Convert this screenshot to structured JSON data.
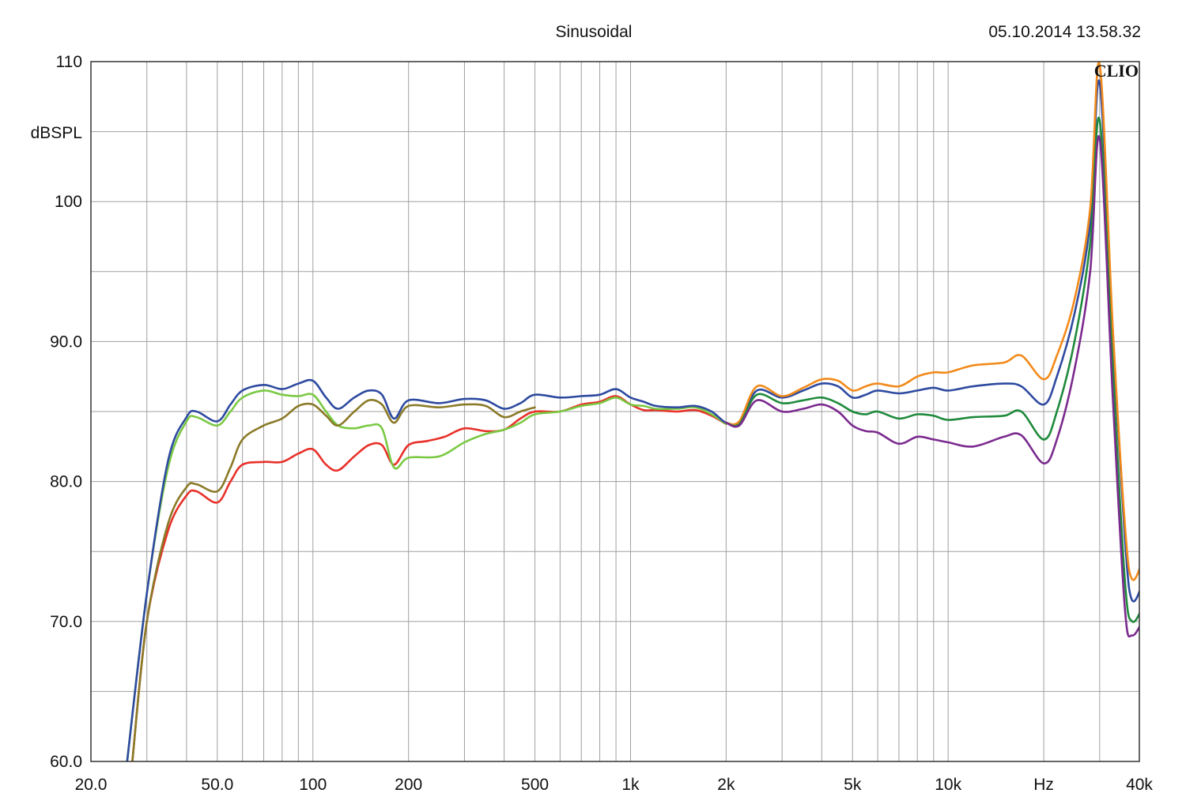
{
  "header": {
    "title": "Sinusoidal",
    "timestamp": "05.10.2014 13.58.32",
    "brand": "CLIO"
  },
  "chart_data": {
    "type": "line",
    "title": "Sinusoidal",
    "ylabel": "dBSPL",
    "xlabel": "Hz",
    "x_scale": "log",
    "xlim": [
      20,
      40000
    ],
    "ylim": [
      60,
      110
    ],
    "grid": true,
    "x_ticks": [
      {
        "value": 20,
        "label": "20.0"
      },
      {
        "value": 50,
        "label": "50.0"
      },
      {
        "value": 100,
        "label": "100"
      },
      {
        "value": 200,
        "label": "200"
      },
      {
        "value": 500,
        "label": "500"
      },
      {
        "value": 1000,
        "label": "1k"
      },
      {
        "value": 2000,
        "label": "2k"
      },
      {
        "value": 5000,
        "label": "5k"
      },
      {
        "value": 10000,
        "label": "10k"
      },
      {
        "value": 20000,
        "label": "Hz"
      },
      {
        "value": 40000,
        "label": "40k"
      }
    ],
    "y_ticks": [
      {
        "value": 110,
        "label": "110"
      },
      {
        "value": 100,
        "label": "100"
      },
      {
        "value": 90,
        "label": "90.0"
      },
      {
        "value": 80,
        "label": "80.0"
      },
      {
        "value": 70,
        "label": "70.0"
      },
      {
        "value": 60,
        "label": "60.0"
      }
    ],
    "series": [
      {
        "color": "#e8312a",
        "points": [
          [
            27,
            60
          ],
          [
            30,
            70
          ],
          [
            35,
            76.5
          ],
          [
            40,
            79
          ],
          [
            43,
            79.3
          ],
          [
            50,
            78.5
          ],
          [
            55,
            80
          ],
          [
            60,
            81.2
          ],
          [
            70,
            81.4
          ],
          [
            80,
            81.4
          ],
          [
            90,
            82
          ],
          [
            100,
            82.3
          ],
          [
            110,
            81.2
          ],
          [
            120,
            80.8
          ],
          [
            135,
            81.8
          ],
          [
            150,
            82.6
          ],
          [
            165,
            82.6
          ],
          [
            180,
            81.2
          ],
          [
            200,
            82.6
          ],
          [
            230,
            82.9
          ],
          [
            260,
            83.2
          ],
          [
            300,
            83.8
          ],
          [
            350,
            83.6
          ],
          [
            400,
            83.7
          ],
          [
            450,
            84.5
          ],
          [
            500,
            85
          ],
          [
            600,
            85
          ],
          [
            700,
            85.5
          ],
          [
            800,
            85.7
          ],
          [
            900,
            86.1
          ],
          [
            1000,
            85.5
          ],
          [
            1100,
            85.1
          ],
          [
            1200,
            85.1
          ],
          [
            1400,
            85
          ],
          [
            1600,
            85.1
          ],
          [
            1800,
            84.7
          ],
          [
            2000,
            84.1
          ]
        ]
      },
      {
        "color": "#7ac943",
        "points": [
          [
            26,
            60
          ],
          [
            30,
            72
          ],
          [
            35,
            81
          ],
          [
            40,
            84.3
          ],
          [
            43,
            84.6
          ],
          [
            50,
            84
          ],
          [
            55,
            85
          ],
          [
            60,
            86
          ],
          [
            70,
            86.5
          ],
          [
            80,
            86.2
          ],
          [
            90,
            86.1
          ],
          [
            100,
            86.2
          ],
          [
            110,
            85
          ],
          [
            120,
            84
          ],
          [
            135,
            83.8
          ],
          [
            150,
            84
          ],
          [
            165,
            83.8
          ],
          [
            180,
            81
          ],
          [
            200,
            81.7
          ],
          [
            250,
            81.8
          ],
          [
            300,
            82.8
          ],
          [
            350,
            83.4
          ],
          [
            400,
            83.7
          ],
          [
            450,
            84.2
          ],
          [
            500,
            84.8
          ],
          [
            600,
            85
          ],
          [
            700,
            85.4
          ],
          [
            800,
            85.6
          ],
          [
            900,
            86
          ],
          [
            1000,
            85.5
          ],
          [
            1100,
            85.4
          ],
          [
            1200,
            85.2
          ],
          [
            1400,
            85.2
          ],
          [
            1600,
            85.3
          ],
          [
            1800,
            84.8
          ],
          [
            2000,
            84.1
          ]
        ]
      },
      {
        "color": "#8a7a28",
        "points": [
          [
            27,
            60
          ],
          [
            30,
            70
          ],
          [
            35,
            77
          ],
          [
            40,
            79.6
          ],
          [
            43,
            79.8
          ],
          [
            50,
            79.3
          ],
          [
            55,
            81
          ],
          [
            60,
            83
          ],
          [
            70,
            84
          ],
          [
            80,
            84.5
          ],
          [
            90,
            85.4
          ],
          [
            100,
            85.5
          ],
          [
            110,
            84.7
          ],
          [
            120,
            84
          ],
          [
            135,
            85
          ],
          [
            150,
            85.8
          ],
          [
            165,
            85.5
          ],
          [
            180,
            84.2
          ],
          [
            200,
            85.4
          ],
          [
            250,
            85.3
          ],
          [
            300,
            85.5
          ],
          [
            350,
            85.4
          ],
          [
            400,
            84.6
          ],
          [
            450,
            85
          ],
          [
            500,
            85.3
          ]
        ]
      },
      {
        "color": "#2e4aa0",
        "points": [
          [
            26,
            60
          ],
          [
            30,
            72
          ],
          [
            35,
            81.5
          ],
          [
            40,
            84.6
          ],
          [
            43,
            85
          ],
          [
            50,
            84.3
          ],
          [
            55,
            85.5
          ],
          [
            60,
            86.5
          ],
          [
            70,
            86.9
          ],
          [
            80,
            86.6
          ],
          [
            90,
            87
          ],
          [
            100,
            87.2
          ],
          [
            110,
            86
          ],
          [
            120,
            85.2
          ],
          [
            135,
            86
          ],
          [
            150,
            86.5
          ],
          [
            165,
            86.2
          ],
          [
            180,
            84.5
          ],
          [
            200,
            85.8
          ],
          [
            250,
            85.6
          ],
          [
            300,
            85.9
          ],
          [
            350,
            85.8
          ],
          [
            400,
            85.2
          ],
          [
            450,
            85.6
          ],
          [
            500,
            86.2
          ],
          [
            600,
            86
          ],
          [
            700,
            86.1
          ],
          [
            800,
            86.2
          ],
          [
            900,
            86.6
          ],
          [
            1000,
            86
          ],
          [
            1100,
            85.7
          ],
          [
            1200,
            85.4
          ],
          [
            1400,
            85.3
          ],
          [
            1600,
            85.4
          ],
          [
            1800,
            85
          ],
          [
            2000,
            84.2
          ],
          [
            2200,
            84.2
          ],
          [
            2500,
            86.5
          ],
          [
            3000,
            86
          ],
          [
            3500,
            86.5
          ],
          [
            4000,
            87
          ],
          [
            4500,
            86.8
          ],
          [
            5000,
            86
          ],
          [
            5500,
            86.2
          ],
          [
            6000,
            86.5
          ],
          [
            7000,
            86.3
          ],
          [
            8000,
            86.5
          ],
          [
            9000,
            86.7
          ],
          [
            10000,
            86.5
          ],
          [
            12000,
            86.8
          ],
          [
            15000,
            87
          ],
          [
            17000,
            86.8
          ],
          [
            20000,
            85.5
          ],
          [
            22000,
            87.5
          ],
          [
            25000,
            92
          ],
          [
            28000,
            98.5
          ],
          [
            30000,
            108.5
          ],
          [
            33000,
            90
          ],
          [
            36000,
            76
          ],
          [
            38000,
            71.5
          ],
          [
            42000,
            73.5
          ],
          [
            46000,
            76.5
          ],
          [
            49000,
            72
          ],
          [
            53000,
            63
          ]
        ]
      },
      {
        "color": "#f28a1a",
        "points": [
          [
            2000,
            84.2
          ],
          [
            2200,
            84.3
          ],
          [
            2500,
            86.8
          ],
          [
            3000,
            86.1
          ],
          [
            3500,
            86.7
          ],
          [
            4000,
            87.3
          ],
          [
            4500,
            87.2
          ],
          [
            5000,
            86.5
          ],
          [
            5500,
            86.8
          ],
          [
            6000,
            87
          ],
          [
            7000,
            86.8
          ],
          [
            8000,
            87.5
          ],
          [
            9000,
            87.8
          ],
          [
            10000,
            87.8
          ],
          [
            12000,
            88.3
          ],
          [
            15000,
            88.5
          ],
          [
            17000,
            89
          ],
          [
            20000,
            87.3
          ],
          [
            22000,
            89
          ],
          [
            25000,
            93
          ],
          [
            28000,
            99.5
          ],
          [
            30000,
            109.8
          ],
          [
            33000,
            91
          ],
          [
            36000,
            77
          ],
          [
            38000,
            73
          ],
          [
            42000,
            75
          ],
          [
            46000,
            77
          ],
          [
            49000,
            73
          ],
          [
            53000,
            66.5
          ]
        ]
      },
      {
        "color": "#1f8a3c",
        "points": [
          [
            2000,
            84.2
          ],
          [
            2200,
            84.1
          ],
          [
            2500,
            86.2
          ],
          [
            3000,
            85.6
          ],
          [
            3500,
            85.8
          ],
          [
            4000,
            86
          ],
          [
            4500,
            85.6
          ],
          [
            5000,
            85
          ],
          [
            5500,
            84.8
          ],
          [
            6000,
            85
          ],
          [
            7000,
            84.5
          ],
          [
            8000,
            84.8
          ],
          [
            9000,
            84.7
          ],
          [
            10000,
            84.4
          ],
          [
            12000,
            84.6
          ],
          [
            15000,
            84.7
          ],
          [
            17000,
            85
          ],
          [
            20000,
            83
          ],
          [
            22000,
            85
          ],
          [
            25000,
            90
          ],
          [
            28000,
            97
          ],
          [
            30000,
            105.8
          ],
          [
            33000,
            88
          ],
          [
            36000,
            73
          ],
          [
            38000,
            70
          ],
          [
            42000,
            71.5
          ],
          [
            46000,
            73
          ],
          [
            49000,
            70
          ],
          [
            53000,
            63
          ]
        ]
      },
      {
        "color": "#7b2a8e",
        "points": [
          [
            2000,
            84.2
          ],
          [
            2200,
            84
          ],
          [
            2500,
            85.8
          ],
          [
            3000,
            85
          ],
          [
            3500,
            85.2
          ],
          [
            4000,
            85.5
          ],
          [
            4500,
            85
          ],
          [
            5000,
            84
          ],
          [
            5500,
            83.6
          ],
          [
            6000,
            83.5
          ],
          [
            7000,
            82.7
          ],
          [
            8000,
            83.2
          ],
          [
            9000,
            83
          ],
          [
            10000,
            82.8
          ],
          [
            12000,
            82.5
          ],
          [
            15000,
            83.2
          ],
          [
            17000,
            83.3
          ],
          [
            20000,
            81.3
          ],
          [
            22000,
            83
          ],
          [
            25000,
            88
          ],
          [
            28000,
            95
          ],
          [
            30000,
            104.5
          ],
          [
            33000,
            86
          ],
          [
            36000,
            71
          ],
          [
            38000,
            69
          ],
          [
            42000,
            70.5
          ],
          [
            46000,
            72
          ],
          [
            49000,
            69
          ],
          [
            53000,
            62
          ]
        ]
      }
    ]
  }
}
